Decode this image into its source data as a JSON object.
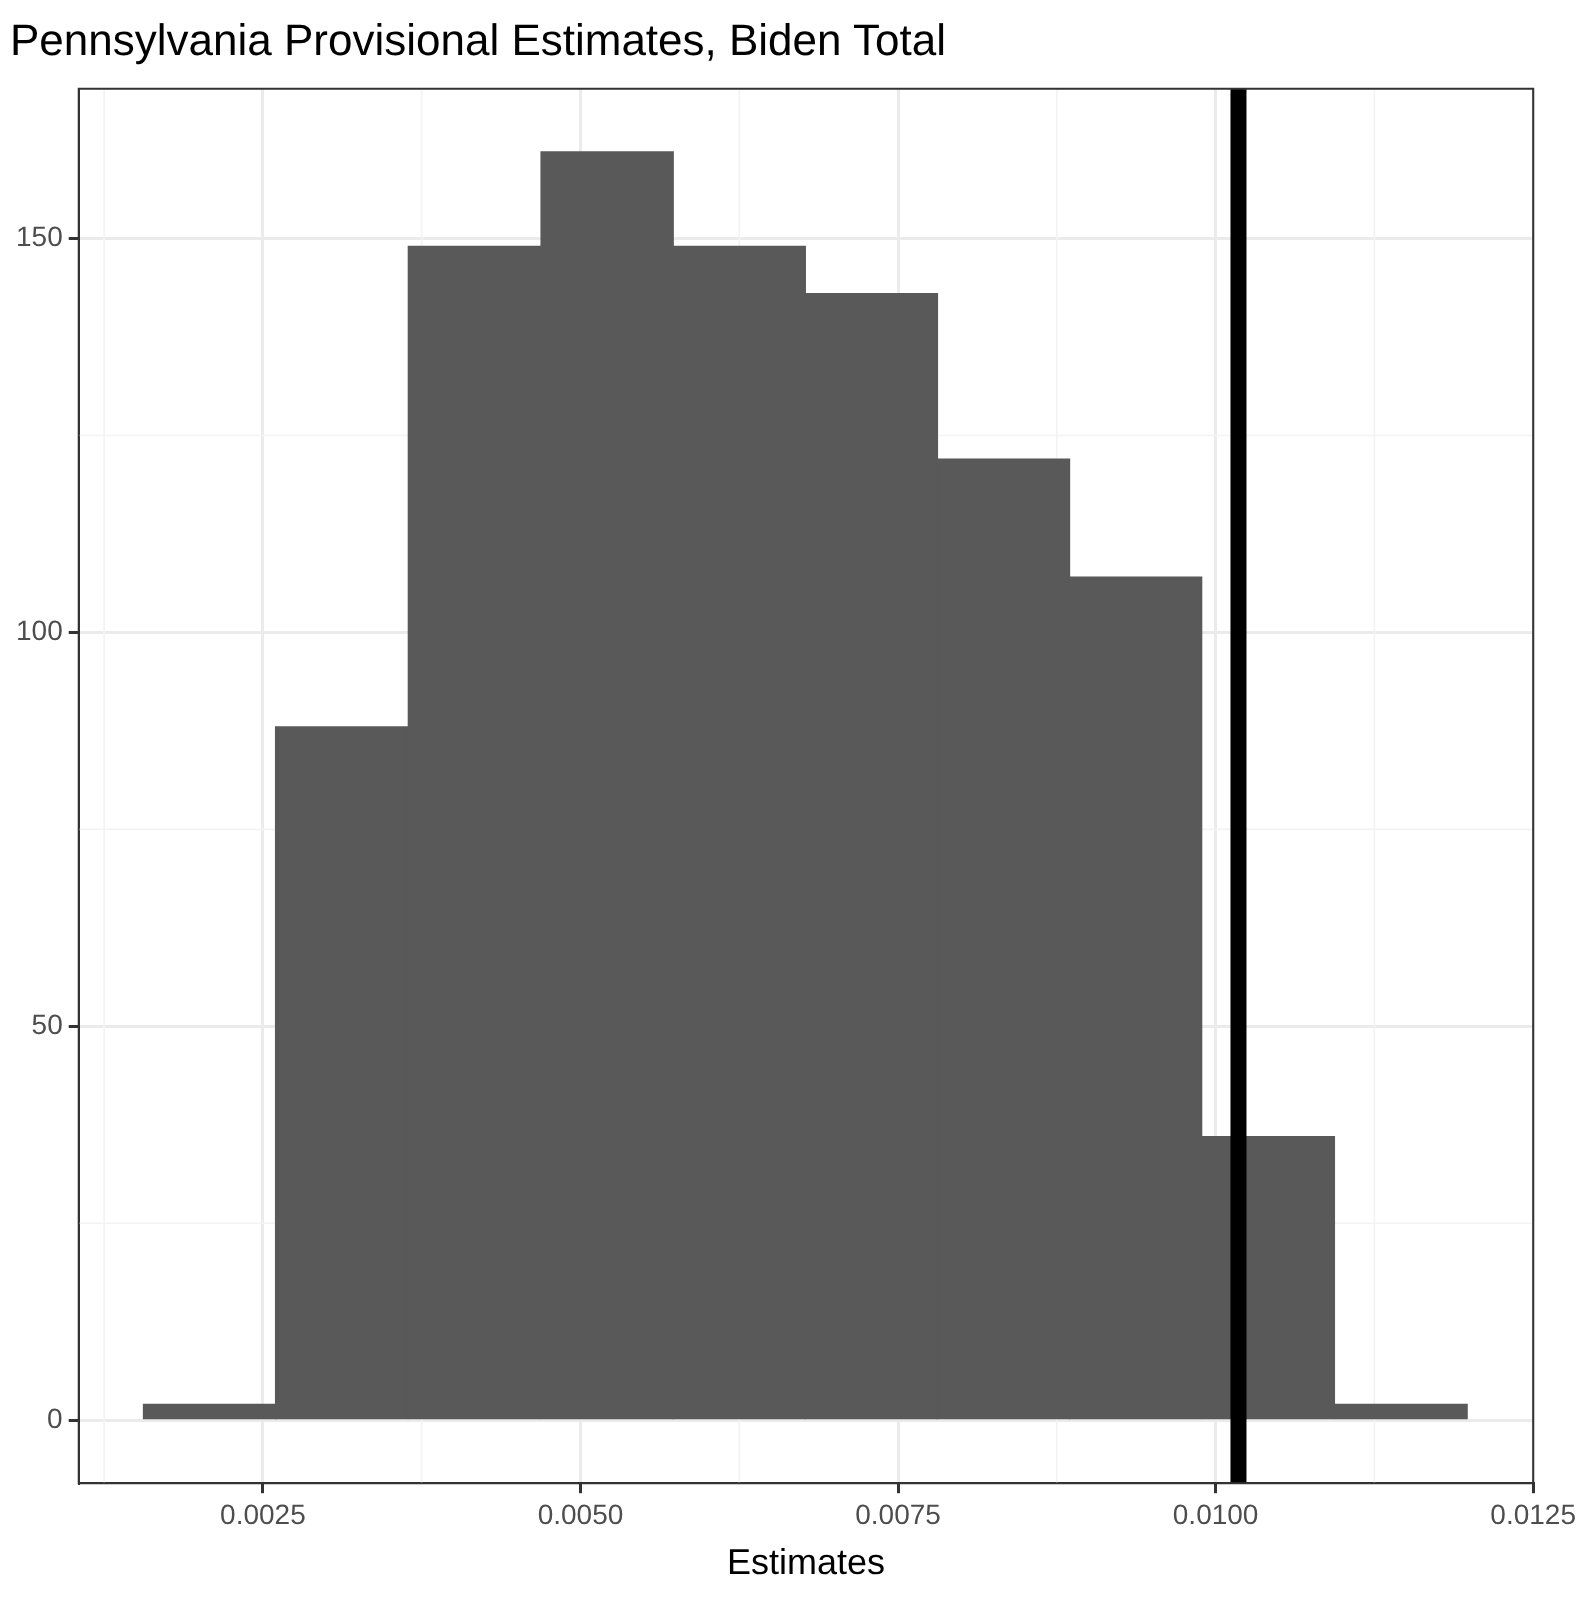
{
  "chart_data": {
    "type": "histogram",
    "title": "Pennsylvania Provisional Estimates, Biden Total",
    "xlabel": "Estimates",
    "bins": [
      0.00156,
      0.0026,
      0.00364,
      0.00469,
      0.00573,
      0.00677,
      0.00781,
      0.00885,
      0.00989,
      0.01094,
      0.01198
    ],
    "values": [
      2,
      88,
      149,
      161,
      149,
      143,
      122,
      107,
      36,
      2
    ],
    "color": "#595959",
    "xlim": [
      0.00105,
      0.0125
    ],
    "xticks": [
      {
        "value": 0.0025,
        "label": "0.0025"
      },
      {
        "value": 0.005,
        "label": "0.0050"
      },
      {
        "value": 0.0075,
        "label": "0.0075"
      },
      {
        "value": 0.01,
        "label": "0.0100"
      },
      {
        "value": 0.0125,
        "label": "0.0125"
      }
    ],
    "ylim": [
      -8,
      169
    ],
    "yticks": [
      0,
      50,
      100,
      150
    ],
    "ref_lines": [
      {
        "axis": "x",
        "value": 0.01018,
        "color": "#000000"
      }
    ],
    "grid": true,
    "legend": false
  }
}
